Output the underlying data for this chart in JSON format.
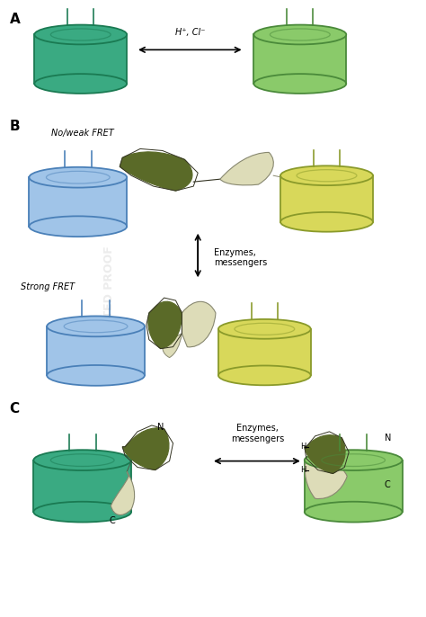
{
  "fig_width": 4.74,
  "fig_height": 6.86,
  "dpi": 100,
  "bg_color": "#ffffff",
  "label_A": "A",
  "label_B": "B",
  "label_C": "C",
  "color_teal_dark": "#3aaa82",
  "color_teal_dark_edge": "#1a7a52",
  "color_teal_light": "#8aca6a",
  "color_teal_light_edge": "#4a8a3a",
  "color_blue_light": "#a0c4e8",
  "color_blue_edge": "#4a80b8",
  "color_yellow_green": "#d8d85a",
  "color_yg_edge": "#8a9a2a",
  "color_olive_dark": "#5a6a28",
  "color_olive_light": "#8a9a48",
  "color_cream": "#dddcb8",
  "color_cream_edge": "#888870",
  "color_black": "#000000",
  "text_hcl": "H⁺, Cl⁻",
  "text_enzymes_B": "Enzymes,\nmessengers",
  "text_enzymes_C": "Enzymes,\nmessengers",
  "text_no_weak": "No/weak FRET",
  "text_strong": "Strong FRET",
  "text_N": "N",
  "text_C": "C"
}
